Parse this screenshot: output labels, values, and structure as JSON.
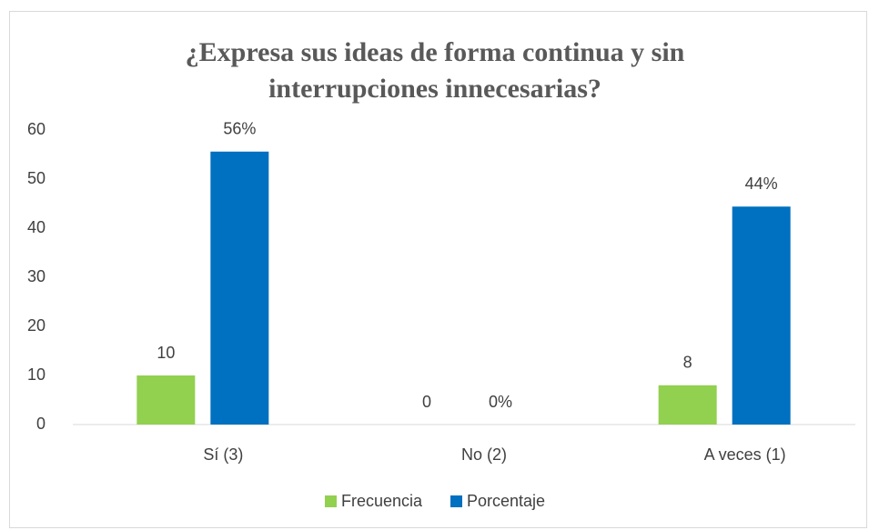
{
  "chart_data": {
    "type": "bar",
    "title": [
      "¿Expresa sus ideas de forma continua y sin",
      "interrupciones innecesarias?"
    ],
    "categories": [
      "Sí (3)",
      "No (2)",
      "A veces (1)"
    ],
    "series": [
      {
        "name": "Frecuencia",
        "color": "#92d050",
        "values": [
          10,
          0,
          8
        ]
      },
      {
        "name": "Porcentaje",
        "color": "#0070c0",
        "values": [
          55.6,
          0,
          44.4
        ],
        "value_labels": [
          "56%",
          "0%",
          "44%"
        ]
      }
    ],
    "ylim": [
      0,
      60
    ],
    "yticks": [
      0,
      10,
      20,
      30,
      40,
      50,
      60
    ],
    "grid": false,
    "legend": "bottom"
  }
}
